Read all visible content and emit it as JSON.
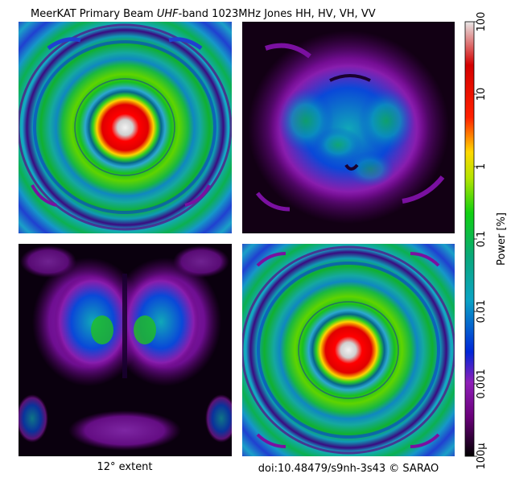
{
  "chart_data": {
    "type": "heatmap",
    "title_prefix": "MeerKAT Primary Beam ",
    "title_band": "UHF",
    "title_suffix": "-band  1023MHz  Jones HH, HV, VH, VV",
    "panels": [
      {
        "name": "HH",
        "pattern": "copolar"
      },
      {
        "name": "HV",
        "pattern": "crosspolar-cloudy"
      },
      {
        "name": "VH",
        "pattern": "crosspolar-split"
      },
      {
        "name": "VV",
        "pattern": "copolar"
      }
    ],
    "colorbar": {
      "label": "Power [%]",
      "scale": "log",
      "range": [
        0.0001,
        100
      ],
      "ticks": [
        {
          "value": 100,
          "label": "100"
        },
        {
          "value": 10,
          "label": "10"
        },
        {
          "value": 1,
          "label": "1"
        },
        {
          "value": 0.1,
          "label": "0.1"
        },
        {
          "value": 0.01,
          "label": "0.01"
        },
        {
          "value": 0.001,
          "label": "0.001"
        },
        {
          "value": 0.0001,
          "label": "100μ"
        }
      ],
      "colors": [
        "#000000",
        "#6a007a",
        "#8e1fb8",
        "#0026d8",
        "#0aa3c4",
        "#09a87a",
        "#10d010",
        "#b4e400",
        "#ffd800",
        "#ff2000",
        "#d40000",
        "#e8e8e8"
      ]
    },
    "extent_label": "12° extent",
    "credit": "doi:10.48479/s9nh-3s43  © SARAO"
  }
}
